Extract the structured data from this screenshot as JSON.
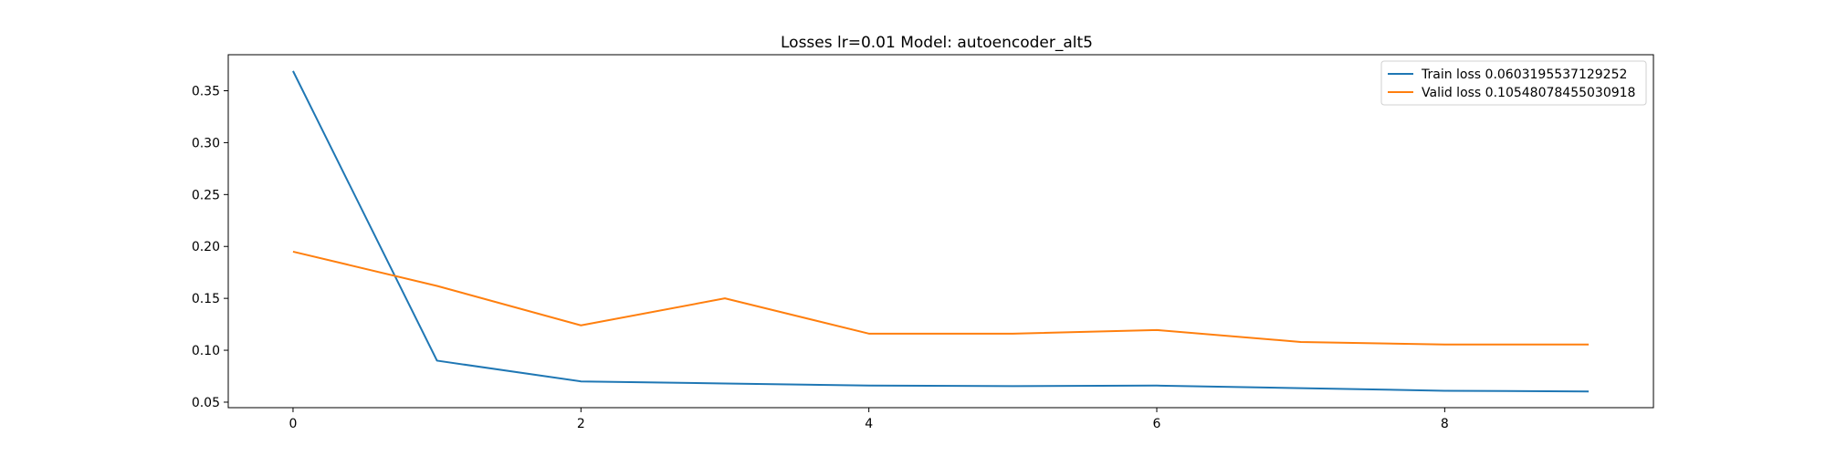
{
  "chart_data": {
    "type": "line",
    "title": "Losses lr=0.01 Model: autoencoder_alt5",
    "xlabel": "",
    "ylabel": "",
    "xlim": [
      -0.45,
      9.45
    ],
    "ylim": [
      0.0447,
      0.3847
    ],
    "x": [
      0,
      1,
      2,
      3,
      4,
      5,
      6,
      7,
      8,
      9
    ],
    "xticks": [
      0,
      2,
      4,
      6,
      8
    ],
    "yticks": [
      0.05,
      0.1,
      0.15,
      0.2,
      0.25,
      0.3,
      0.35
    ],
    "ytick_labels": [
      "0.05",
      "0.10",
      "0.15",
      "0.20",
      "0.25",
      "0.30",
      "0.35"
    ],
    "grid": false,
    "legend_position": "top-right",
    "series": [
      {
        "name": "Train loss 0.0603195537129252",
        "color": "#1f77b4",
        "values": [
          0.369,
          0.09,
          0.07,
          0.068,
          0.066,
          0.0655,
          0.066,
          0.0635,
          0.061,
          0.0603
        ]
      },
      {
        "name": "Valid loss 0.10548078455030918",
        "color": "#ff7f0e",
        "values": [
          0.195,
          0.162,
          0.124,
          0.15,
          0.116,
          0.116,
          0.1195,
          0.108,
          0.1055,
          0.1055
        ]
      }
    ]
  }
}
